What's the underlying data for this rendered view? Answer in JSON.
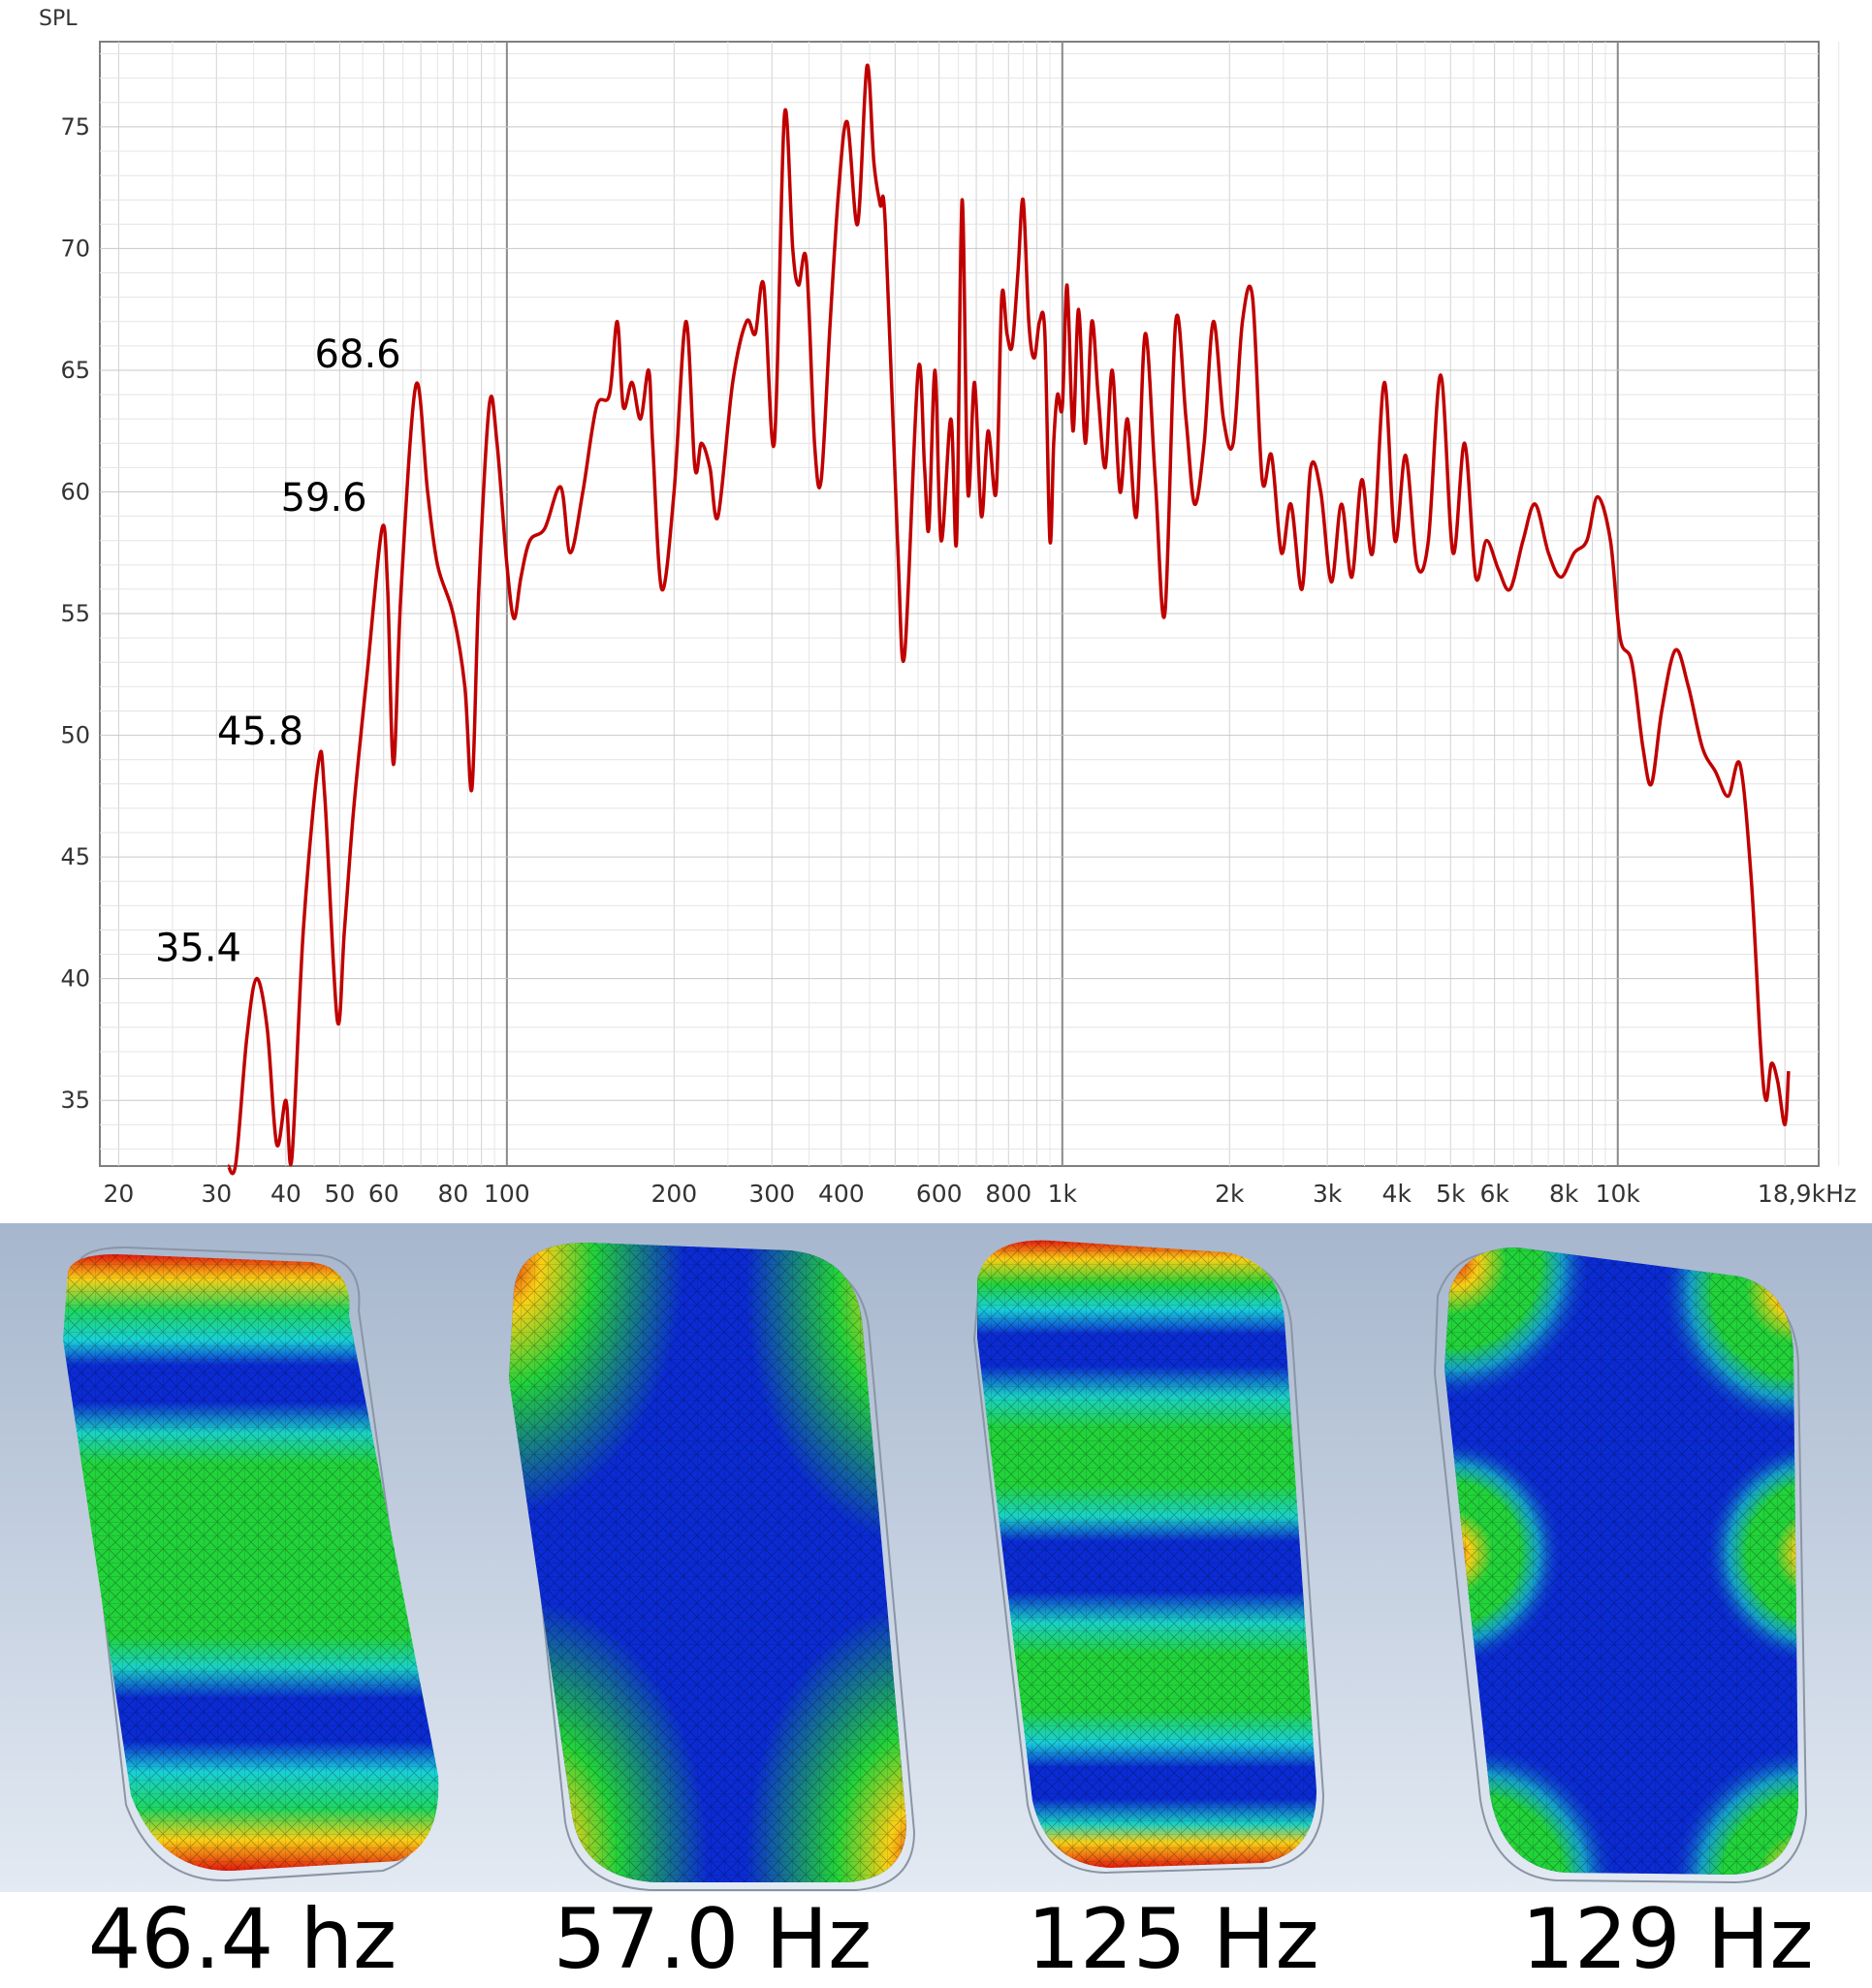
{
  "chart_data": {
    "type": "line",
    "title": "",
    "ylabel": "SPL",
    "xlabel": "",
    "x_scale": "log",
    "xlim": [
      18.5,
      23000
    ],
    "ylim": [
      32.3,
      78.5
    ],
    "grid": true,
    "y_ticks": [
      35,
      40,
      45,
      50,
      55,
      60,
      65,
      70,
      75
    ],
    "x_ticks": [
      {
        "value": 20,
        "label": "20"
      },
      {
        "value": 30,
        "label": "30"
      },
      {
        "value": 40,
        "label": "40"
      },
      {
        "value": 50,
        "label": "50"
      },
      {
        "value": 60,
        "label": "60"
      },
      {
        "value": 80,
        "label": "80"
      },
      {
        "value": 100,
        "label": "100"
      },
      {
        "value": 200,
        "label": "200"
      },
      {
        "value": 300,
        "label": "300"
      },
      {
        "value": 400,
        "label": "400"
      },
      {
        "value": 600,
        "label": "600"
      },
      {
        "value": 800,
        "label": "800"
      },
      {
        "value": 1000,
        "label": "1k"
      },
      {
        "value": 2000,
        "label": "2k"
      },
      {
        "value": 3000,
        "label": "3k"
      },
      {
        "value": 4000,
        "label": "4k"
      },
      {
        "value": 5000,
        "label": "5k"
      },
      {
        "value": 6000,
        "label": "6k"
      },
      {
        "value": 8000,
        "label": "8k"
      },
      {
        "value": 10000,
        "label": "10k"
      },
      {
        "value": 18900,
        "label": "18,9kHz"
      }
    ],
    "annotations": [
      {
        "text": "35.4",
        "x": 35.4,
        "y": 40.0
      },
      {
        "text": "45.8",
        "x": 45.8,
        "y": 48.9
      },
      {
        "text": "59.6",
        "x": 59.6,
        "y": 58.5
      },
      {
        "text": "68.6",
        "x": 68.6,
        "y": 64.4
      }
    ],
    "series": [
      {
        "color": "#c00000",
        "points": [
          [
            31.5,
            32.3
          ],
          [
            32.5,
            32.4
          ],
          [
            34.0,
            37.5
          ],
          [
            35.4,
            40.0
          ],
          [
            37.0,
            38.0
          ],
          [
            38.5,
            33.2
          ],
          [
            40.0,
            35.0
          ],
          [
            41.0,
            32.6
          ],
          [
            43.0,
            42.0
          ],
          [
            45.8,
            48.9
          ],
          [
            47.0,
            47.5
          ],
          [
            49.5,
            38.3
          ],
          [
            51.0,
            42.0
          ],
          [
            53.0,
            47.0
          ],
          [
            56.0,
            52.5
          ],
          [
            59.6,
            58.5
          ],
          [
            61.0,
            56.0
          ],
          [
            62.5,
            48.8
          ],
          [
            64.5,
            56.0
          ],
          [
            68.6,
            64.4
          ],
          [
            72.0,
            60.0
          ],
          [
            75.0,
            57.0
          ],
          [
            80.0,
            55.0
          ],
          [
            84.0,
            52.0
          ],
          [
            86.5,
            47.8
          ],
          [
            89.0,
            56.0
          ],
          [
            93.0,
            63.6
          ],
          [
            96.0,
            62.0
          ],
          [
            100,
            57.0
          ],
          [
            103,
            54.8
          ],
          [
            106,
            56.5
          ],
          [
            110,
            58.0
          ],
          [
            117,
            58.5
          ],
          [
            125,
            60.2
          ],
          [
            130,
            57.5
          ],
          [
            137,
            60.0
          ],
          [
            145,
            63.5
          ],
          [
            153,
            64.0
          ],
          [
            158,
            67.0
          ],
          [
            162,
            63.5
          ],
          [
            168,
            64.5
          ],
          [
            174,
            63.0
          ],
          [
            180,
            65.0
          ],
          [
            183,
            62.0
          ],
          [
            190,
            56.0
          ],
          [
            200,
            60.0
          ],
          [
            210,
            67.0
          ],
          [
            218,
            61.0
          ],
          [
            224,
            62.0
          ],
          [
            232,
            61.0
          ],
          [
            240,
            59.0
          ],
          [
            255,
            64.5
          ],
          [
            270,
            67.0
          ],
          [
            280,
            66.5
          ],
          [
            290,
            68.5
          ],
          [
            303,
            62.0
          ],
          [
            316,
            75.5
          ],
          [
            327,
            70.0
          ],
          [
            335,
            68.5
          ],
          [
            346,
            69.5
          ],
          [
            358,
            62.0
          ],
          [
            368,
            60.5
          ],
          [
            382,
            67.0
          ],
          [
            396,
            72.5
          ],
          [
            410,
            75.2
          ],
          [
            428,
            71.0
          ],
          [
            445,
            77.5
          ],
          [
            458,
            73.5
          ],
          [
            470,
            71.8
          ],
          [
            480,
            71.0
          ],
          [
            505,
            58.0
          ],
          [
            520,
            53.3
          ],
          [
            550,
            65.0
          ],
          [
            565,
            61.0
          ],
          [
            575,
            58.5
          ],
          [
            590,
            65.0
          ],
          [
            605,
            58.0
          ],
          [
            630,
            63.0
          ],
          [
            645,
            58.0
          ],
          [
            660,
            72.0
          ],
          [
            676,
            60.0
          ],
          [
            695,
            64.5
          ],
          [
            715,
            59.0
          ],
          [
            735,
            62.5
          ],
          [
            760,
            60.0
          ],
          [
            778,
            68.0
          ],
          [
            795,
            66.5
          ],
          [
            812,
            66.0
          ],
          [
            832,
            69.0
          ],
          [
            850,
            72.0
          ],
          [
            870,
            67.0
          ],
          [
            890,
            65.5
          ],
          [
            910,
            67.0
          ],
          [
            930,
            66.5
          ],
          [
            950,
            58.0
          ],
          [
            965,
            62.0
          ],
          [
            980,
            64.0
          ],
          [
            1000,
            63.5
          ],
          [
            1020,
            68.5
          ],
          [
            1045,
            62.5
          ],
          [
            1070,
            67.5
          ],
          [
            1100,
            62.0
          ],
          [
            1130,
            67.0
          ],
          [
            1160,
            64.0
          ],
          [
            1195,
            61.0
          ],
          [
            1230,
            65.0
          ],
          [
            1270,
            60.0
          ],
          [
            1310,
            63.0
          ],
          [
            1360,
            59.0
          ],
          [
            1410,
            66.5
          ],
          [
            1470,
            60.5
          ],
          [
            1530,
            55.0
          ],
          [
            1600,
            67.0
          ],
          [
            1670,
            63.0
          ],
          [
            1730,
            59.5
          ],
          [
            1800,
            62.0
          ],
          [
            1870,
            67.0
          ],
          [
            1950,
            63.0
          ],
          [
            2030,
            62.0
          ],
          [
            2110,
            67.0
          ],
          [
            2200,
            68.0
          ],
          [
            2290,
            60.5
          ],
          [
            2380,
            61.5
          ],
          [
            2480,
            57.5
          ],
          [
            2580,
            59.5
          ],
          [
            2700,
            56.0
          ],
          [
            2800,
            61.0
          ],
          [
            2920,
            60.0
          ],
          [
            3050,
            56.3
          ],
          [
            3180,
            59.5
          ],
          [
            3320,
            56.5
          ],
          [
            3460,
            60.5
          ],
          [
            3620,
            57.5
          ],
          [
            3800,
            64.5
          ],
          [
            3970,
            58.0
          ],
          [
            4150,
            61.5
          ],
          [
            4350,
            57.0
          ],
          [
            4560,
            58.0
          ],
          [
            4800,
            64.8
          ],
          [
            5050,
            57.5
          ],
          [
            5300,
            62.0
          ],
          [
            5550,
            56.5
          ],
          [
            5800,
            58.0
          ],
          [
            6100,
            56.8
          ],
          [
            6400,
            56.0
          ],
          [
            6750,
            58.0
          ],
          [
            7100,
            59.5
          ],
          [
            7500,
            57.5
          ],
          [
            7900,
            56.5
          ],
          [
            8350,
            57.5
          ],
          [
            8800,
            58.0
          ],
          [
            9200,
            59.8
          ],
          [
            9700,
            58.0
          ],
          [
            10100,
            54.0
          ],
          [
            10600,
            53.0
          ],
          [
            11100,
            49.5
          ],
          [
            11500,
            48.0
          ],
          [
            12000,
            51.0
          ],
          [
            12700,
            53.5
          ],
          [
            13400,
            52.0
          ],
          [
            14200,
            49.5
          ],
          [
            15000,
            48.5
          ],
          [
            15800,
            47.5
          ],
          [
            16600,
            48.8
          ],
          [
            17400,
            44.0
          ],
          [
            18100,
            37.0
          ],
          [
            18500,
            35.0
          ],
          [
            18900,
            36.5
          ],
          [
            19400,
            35.8
          ],
          [
            20000,
            34.0
          ],
          [
            20300,
            36.2
          ]
        ]
      }
    ]
  },
  "modes": [
    {
      "label": "46.4 hz"
    },
    {
      "label": "57.0 Hz"
    },
    {
      "label": "125 Hz"
    },
    {
      "label": "129 Hz"
    }
  ]
}
